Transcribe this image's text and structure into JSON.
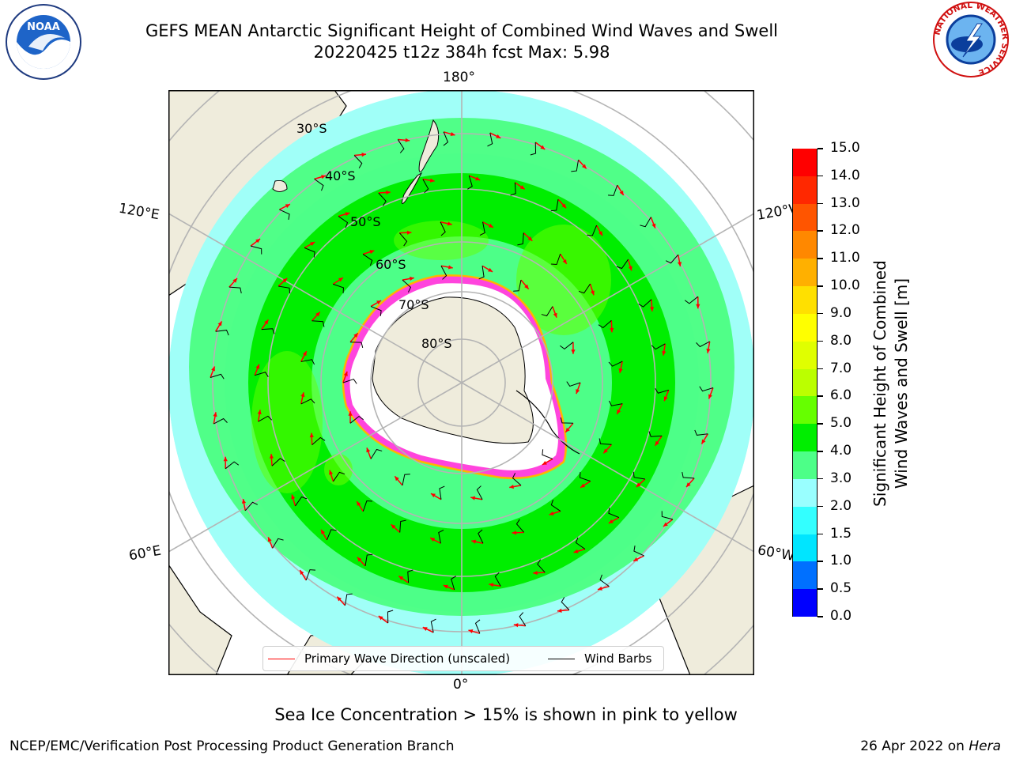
{
  "title": {
    "line1": "GEFS MEAN Antarctic Significant Height of Combined Wind Waves and Swell",
    "line2": "20220425 t12z 384h fcst   Max: 5.98"
  },
  "logos": {
    "left_text": "NOAA",
    "right_ring": "NATIONAL WEATHER SERVICE"
  },
  "map": {
    "lon_labels": {
      "top": "180°",
      "bottom": "0°",
      "upper_left": "120°E",
      "upper_right": "120°W",
      "lower_left": "60°E",
      "lower_right": "60°W"
    },
    "lat_labels": [
      "30°S",
      "40°S",
      "50°S",
      "60°S",
      "70°S",
      "80°S"
    ],
    "colors": {
      "land": "#efecdc",
      "ice_shelf": "#ffffff",
      "sea_ice": "#ff33dd",
      "wave_arrow": "#ff0000",
      "wind_barb": "#000000"
    }
  },
  "legend": {
    "wave_direction": "Primary Wave Direction (unscaled)",
    "wind_barbs": "Wind Barbs"
  },
  "colorbar": {
    "label_line1": "Significant Height of Combined",
    "label_line2": "Wind Waves and Swell [m]",
    "ticks": [
      "0.0",
      "0.5",
      "1.0",
      "1.5",
      "2.0",
      "3.0",
      "4.0",
      "5.0",
      "6.0",
      "7.0",
      "8.0",
      "9.0",
      "10.0",
      "11.0",
      "12.0",
      "13.0",
      "14.0",
      "15.0"
    ],
    "colors": [
      "#0000ff",
      "#0070ff",
      "#00e5ff",
      "#33ffff",
      "#99ffff",
      "#4dff88",
      "#00ee00",
      "#66ff00",
      "#bbff00",
      "#e0ff00",
      "#ffff00",
      "#ffe000",
      "#ffb000",
      "#ff8800",
      "#ff5500",
      "#ff2800",
      "#ff0000"
    ]
  },
  "note": "Sea Ice Concentration > 15% is shown in pink to yellow",
  "footer": {
    "left": "NCEP/EMC/Verification Post Processing Product Generation Branch",
    "right_date": "26 Apr 2022 on ",
    "right_machine": "Hera"
  }
}
